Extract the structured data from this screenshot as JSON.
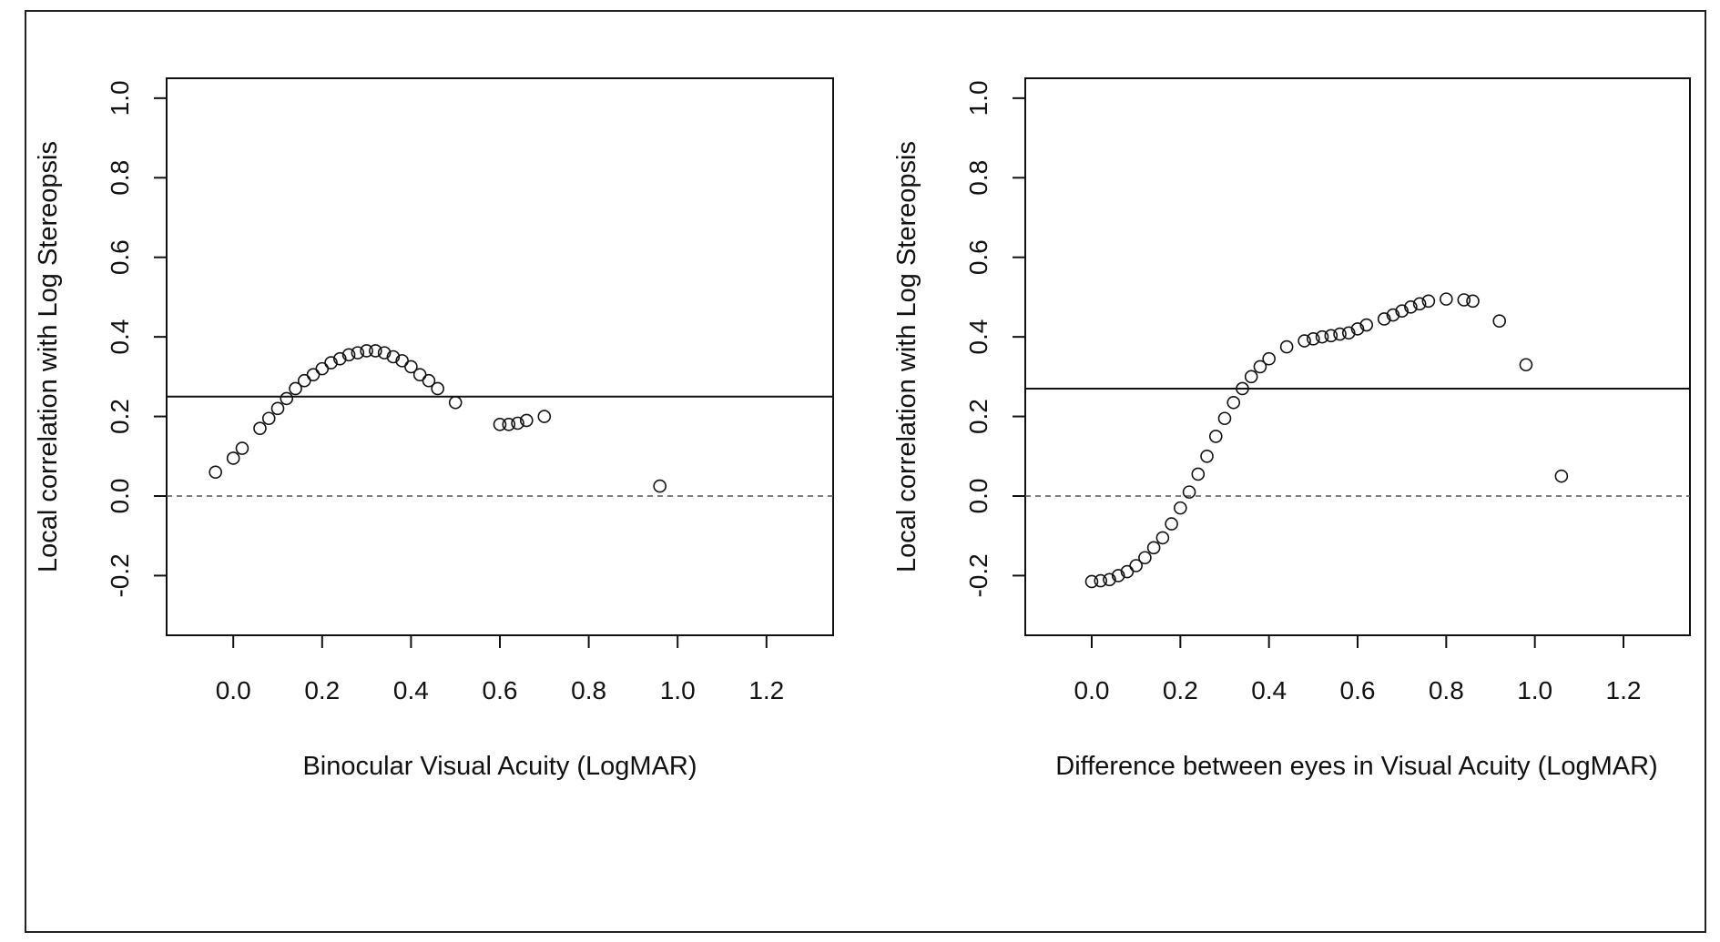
{
  "chart_data": [
    {
      "type": "scatter",
      "xlabel": "Binocular Visual Acuity (LogMAR)",
      "ylabel": "Local correlation with Log Stereopsis",
      "xlim": [
        -0.15,
        1.35
      ],
      "ylim": [
        -0.35,
        1.05
      ],
      "xticks": [
        "0.0",
        "0.2",
        "0.4",
        "0.6",
        "0.8",
        "1.0",
        "1.2"
      ],
      "yticks": [
        "-0.2",
        "0.0",
        "0.2",
        "0.4",
        "0.6",
        "0.8",
        "1.0"
      ],
      "reference_line": 0.25,
      "zero_line": 0.0,
      "grid": false,
      "series": [
        {
          "points": [
            [
              -0.04,
              0.06
            ],
            [
              0.0,
              0.095
            ],
            [
              0.02,
              0.12
            ],
            [
              0.06,
              0.17
            ],
            [
              0.08,
              0.195
            ],
            [
              0.1,
              0.22
            ],
            [
              0.12,
              0.245
            ],
            [
              0.14,
              0.27
            ],
            [
              0.16,
              0.29
            ],
            [
              0.18,
              0.305
            ],
            [
              0.2,
              0.32
            ],
            [
              0.22,
              0.335
            ],
            [
              0.24,
              0.345
            ],
            [
              0.26,
              0.355
            ],
            [
              0.28,
              0.36
            ],
            [
              0.3,
              0.365
            ],
            [
              0.32,
              0.365
            ],
            [
              0.34,
              0.36
            ],
            [
              0.36,
              0.35
            ],
            [
              0.38,
              0.34
            ],
            [
              0.4,
              0.325
            ],
            [
              0.42,
              0.305
            ],
            [
              0.44,
              0.29
            ],
            [
              0.46,
              0.27
            ],
            [
              0.5,
              0.235
            ],
            [
              0.6,
              0.18
            ],
            [
              0.62,
              0.18
            ],
            [
              0.64,
              0.183
            ],
            [
              0.66,
              0.19
            ],
            [
              0.7,
              0.2
            ],
            [
              0.96,
              0.025
            ]
          ]
        }
      ]
    },
    {
      "type": "scatter",
      "xlabel": "Difference between eyes in Visual Acuity (LogMAR)",
      "ylabel": "Local correlation with Log Stereopsis",
      "xlim": [
        -0.15,
        1.35
      ],
      "ylim": [
        -0.35,
        1.05
      ],
      "xticks": [
        "0.0",
        "0.2",
        "0.4",
        "0.6",
        "0.8",
        "1.0",
        "1.2"
      ],
      "yticks": [
        "-0.2",
        "0.0",
        "0.2",
        "0.4",
        "0.6",
        "0.8",
        "1.0"
      ],
      "reference_line": 0.27,
      "zero_line": 0.0,
      "grid": false,
      "series": [
        {
          "points": [
            [
              0.0,
              -0.215
            ],
            [
              0.02,
              -0.213
            ],
            [
              0.04,
              -0.21
            ],
            [
              0.06,
              -0.2
            ],
            [
              0.08,
              -0.19
            ],
            [
              0.1,
              -0.175
            ],
            [
              0.12,
              -0.155
            ],
            [
              0.14,
              -0.13
            ],
            [
              0.16,
              -0.105
            ],
            [
              0.18,
              -0.07
            ],
            [
              0.2,
              -0.03
            ],
            [
              0.22,
              0.01
            ],
            [
              0.24,
              0.055
            ],
            [
              0.26,
              0.1
            ],
            [
              0.28,
              0.15
            ],
            [
              0.3,
              0.195
            ],
            [
              0.32,
              0.235
            ],
            [
              0.34,
              0.27
            ],
            [
              0.36,
              0.3
            ],
            [
              0.38,
              0.325
            ],
            [
              0.4,
              0.345
            ],
            [
              0.44,
              0.375
            ],
            [
              0.48,
              0.39
            ],
            [
              0.5,
              0.395
            ],
            [
              0.52,
              0.4
            ],
            [
              0.54,
              0.403
            ],
            [
              0.56,
              0.407
            ],
            [
              0.58,
              0.41
            ],
            [
              0.6,
              0.42
            ],
            [
              0.62,
              0.43
            ],
            [
              0.66,
              0.445
            ],
            [
              0.68,
              0.455
            ],
            [
              0.7,
              0.465
            ],
            [
              0.72,
              0.475
            ],
            [
              0.74,
              0.483
            ],
            [
              0.76,
              0.49
            ],
            [
              0.8,
              0.495
            ],
            [
              0.84,
              0.493
            ],
            [
              0.86,
              0.49
            ],
            [
              0.92,
              0.44
            ],
            [
              0.98,
              0.33
            ],
            [
              1.06,
              0.05
            ]
          ]
        }
      ]
    }
  ]
}
